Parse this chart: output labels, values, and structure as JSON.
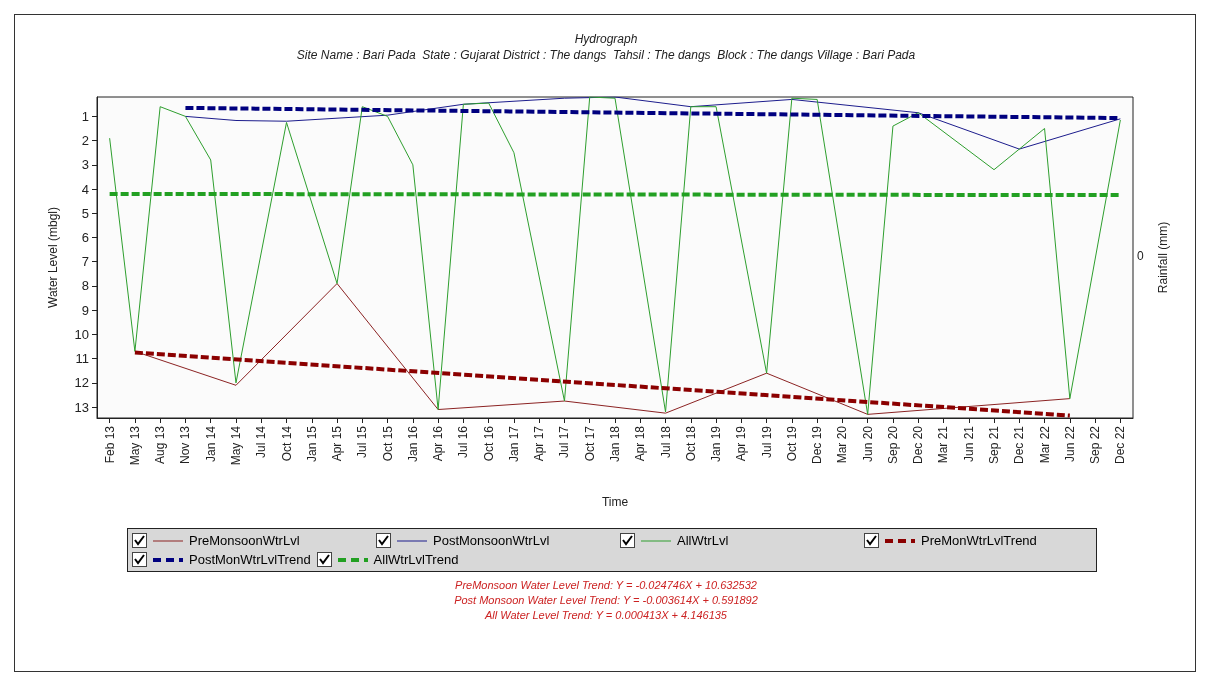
{
  "chart_data": {
    "type": "line",
    "title": "Hydrograph",
    "subtitle": "Site Name : Bari Pada  State : Gujarat District : The dangs  Tahsil : The dangs  Block : The dangs Village : Bari Pada",
    "xlabel": "Time",
    "ylabel": "Water Level (mbgl)",
    "y2label": "Rainfall (mm)",
    "categories": [
      "Feb 13",
      "May 13",
      "Aug 13",
      "Nov 13",
      "Jan 14",
      "May 14",
      "Jul 14",
      "Oct 14",
      "Jan 15",
      "Apr 15",
      "Jul 15",
      "Oct 15",
      "Jan 16",
      "Apr 16",
      "Jul 16",
      "Oct 16",
      "Jan 17",
      "Apr 17",
      "Jul 17",
      "Oct 17",
      "Jan 18",
      "Apr 18",
      "Jul 18",
      "Oct 18",
      "Jan 19",
      "Apr 19",
      "Jul 19",
      "Oct 19",
      "Dec 19",
      "Mar 20",
      "Jun 20",
      "Sep 20",
      "Dec 20",
      "Mar 21",
      "Jun 21",
      "Sep 21",
      "Dec 21",
      "Mar 22",
      "Jun 22",
      "Sep 22",
      "Dec 22"
    ],
    "ylim": [
      13.45,
      0.2
    ],
    "yticks": [
      1,
      2,
      3,
      4,
      5,
      6,
      7,
      8,
      9,
      10,
      11,
      12,
      13
    ],
    "grid": false,
    "marker": "none",
    "legend": "bottom",
    "series": [
      {
        "name": "PreMonsoonWtrLvl",
        "color": "#8b2323",
        "line_style": "solid",
        "values": [
          null,
          10.7,
          null,
          null,
          null,
          12.1,
          null,
          null,
          null,
          7.9,
          null,
          null,
          null,
          13.1,
          null,
          null,
          null,
          null,
          12.75,
          null,
          null,
          null,
          13.25,
          null,
          null,
          null,
          11.6,
          null,
          null,
          null,
          13.3,
          null,
          null,
          null,
          null,
          null,
          null,
          null,
          12.65,
          null,
          null
        ]
      },
      {
        "name": "PostMonsoonWtrLvl",
        "color": "#1c1c8c",
        "line_style": "solid",
        "values": [
          null,
          null,
          null,
          1.0,
          null,
          1.17,
          null,
          1.2,
          null,
          null,
          null,
          0.95,
          null,
          null,
          0.5,
          null,
          null,
          null,
          0.25,
          null,
          0.2,
          null,
          null,
          0.6,
          null,
          null,
          null,
          0.3,
          null,
          null,
          null,
          null,
          0.85,
          null,
          null,
          null,
          2.35,
          null,
          null,
          null,
          1.1
        ]
      },
      {
        "name": "AllWtrLvl",
        "color": "#2e9e2e",
        "line_style": "solid",
        "values": [
          1.9,
          10.7,
          0.6,
          1.0,
          2.8,
          12.0,
          null,
          1.25,
          null,
          7.9,
          0.6,
          1.0,
          3.0,
          13.1,
          0.5,
          0.45,
          2.5,
          null,
          12.75,
          0.2,
          0.25,
          null,
          13.2,
          0.6,
          0.6,
          null,
          11.6,
          0.25,
          0.3,
          null,
          13.3,
          1.4,
          0.85,
          null,
          null,
          3.2,
          null,
          1.5,
          12.65,
          null,
          1.15
        ]
      },
      {
        "name": "PreMonWtrLvlTrend",
        "color": "#8b0000",
        "line_style": "dashed",
        "values": [
          null,
          10.75,
          null,
          null,
          null,
          null,
          null,
          null,
          null,
          null,
          null,
          null,
          null,
          null,
          null,
          null,
          null,
          null,
          null,
          null,
          null,
          null,
          null,
          null,
          null,
          null,
          null,
          null,
          null,
          null,
          null,
          null,
          null,
          null,
          null,
          null,
          null,
          null,
          13.35,
          null,
          null
        ]
      },
      {
        "name": "PostMonWtrLvlTrend",
        "color": "#00007f",
        "line_style": "dashed",
        "values": [
          null,
          null,
          null,
          0.65,
          null,
          null,
          null,
          null,
          null,
          null,
          null,
          null,
          null,
          null,
          null,
          null,
          null,
          null,
          null,
          null,
          null,
          null,
          null,
          null,
          null,
          null,
          null,
          null,
          null,
          null,
          null,
          null,
          null,
          null,
          null,
          null,
          null,
          null,
          null,
          null,
          1.07
        ]
      },
      {
        "name": "AllWtrLvlTrend",
        "color": "#22a022",
        "line_style": "dashed",
        "values": [
          4.2,
          null,
          null,
          null,
          null,
          null,
          null,
          null,
          null,
          null,
          null,
          null,
          null,
          null,
          null,
          null,
          null,
          null,
          null,
          null,
          null,
          null,
          null,
          null,
          null,
          null,
          null,
          null,
          null,
          null,
          null,
          null,
          null,
          null,
          null,
          null,
          null,
          null,
          null,
          null,
          4.25
        ]
      }
    ],
    "annotations": [
      "0",
      "PreMonsoon Water Level Trend: Y = -0.024746X + 10.632532",
      "Post Monsoon Water Level Trend: Y = -0.003614X + 0.591892",
      "All Water Level Trend: Y = 0.000413X + 4.146135"
    ]
  }
}
